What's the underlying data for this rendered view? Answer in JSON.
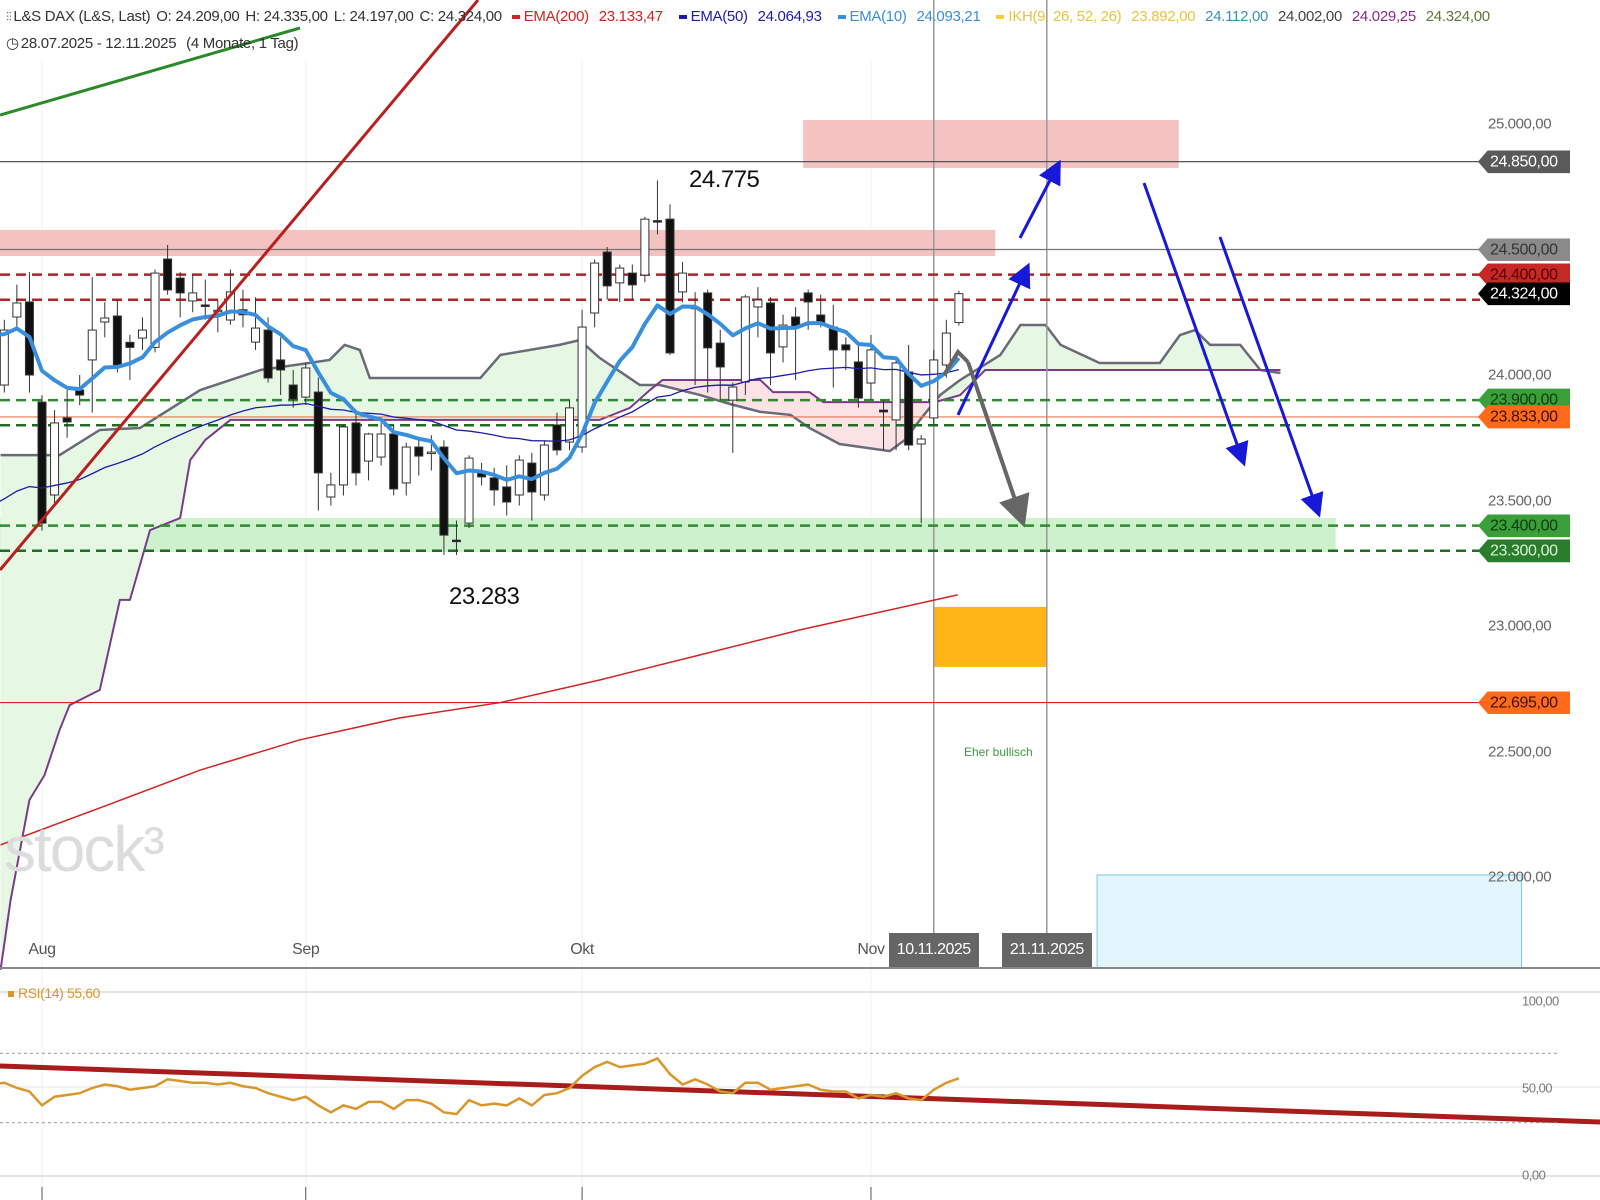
{
  "header": {
    "symbol": "L&S DAX (L&S, Last)",
    "open": "O: 24.209,00",
    "high": "H: 24.335,00",
    "low": "L: 24.197,00",
    "close": "C: 24.324,00",
    "ema200_label": "EMA(200)",
    "ema200_value": "23.133,47",
    "ema50_label": "EMA(50)",
    "ema50_value": "24.064,93",
    "ema10_label": "EMA(10)",
    "ema10_value": "24.093,21",
    "ikh_label": "IKH(9, 26, 52, 26)",
    "ikh_values": [
      "23.892,00",
      "24.112,00",
      "24.002,00",
      "24.029,25",
      "24.324,00"
    ],
    "date_range": "28.07.2025 - 12.11.2025",
    "span": "(4 Monate, 1 Tag)"
  },
  "colors": {
    "ema200": "#d22222",
    "ema50": "#1c1ca8",
    "ema10": "#3a8fdc",
    "ikh": "#f2cf3a",
    "rsi": "#d9962a",
    "up_zone": "#c6efc6",
    "down_zone": "#f5c2c2",
    "target_box": "#ffb515",
    "forecast_box": "#e2f4fc"
  },
  "annotations": {
    "high_label": "24.775",
    "low_label": "23.283",
    "bias_label": "Eher bullisch",
    "watermark": "stock³"
  },
  "x_axis": {
    "months": [
      {
        "label": "Aug",
        "index": 4
      },
      {
        "label": "Sep",
        "index": 25
      },
      {
        "label": "Okt",
        "index": 47
      },
      {
        "label": "Nov",
        "index": 70
      }
    ],
    "date_markers": [
      {
        "label": "10.11.2025",
        "index": 75
      },
      {
        "label": "21.11.2025",
        "index": 84
      }
    ]
  },
  "y_axis": {
    "ticks": [
      {
        "price": 25000,
        "label": "25.000,00"
      },
      {
        "price": 24000,
        "label": "24.000,00"
      },
      {
        "price": 23500,
        "label": "23.500,00"
      },
      {
        "price": 23000,
        "label": "23.000,00"
      },
      {
        "price": 22500,
        "label": "22.500,00"
      },
      {
        "price": 22000,
        "label": "22.000,00"
      }
    ]
  },
  "levels": [
    {
      "price": 24850,
      "label": "24.850,00",
      "line": "solid",
      "color": "#555555",
      "tag_bg": "#5a5a5a",
      "tag_fg": "#ffffff"
    },
    {
      "price": 24500,
      "label": "24.500,00",
      "line": "solid",
      "color": "#777777",
      "tag_bg": "#8a8a8a",
      "tag_fg": "#333333"
    },
    {
      "price": 24400,
      "label": "24.400,00",
      "line": "dashed",
      "color": "#b22222",
      "tag_bg": "#c62828",
      "tag_fg": "#5a0000"
    },
    {
      "price": 24300,
      "label": "24.324,00",
      "line": "dashed",
      "color": "#b22222",
      "tag_bg": "#000000",
      "tag_fg": "#ffffff"
    },
    {
      "price": 23900,
      "label": "23.900,00",
      "line": "dashed",
      "color": "#2e8b2e",
      "tag_bg": "#3a9e3a",
      "tag_fg": "#0c3d0c"
    },
    {
      "price": 23833,
      "label": "23.833,00",
      "line": "solid",
      "color": "#e07a50",
      "tag_bg": "#ff6a1a",
      "tag_fg": "#3a1000"
    },
    {
      "price": 23800,
      "label": "",
      "line": "dashed",
      "color": "#1f6e1f",
      "tag_bg": "",
      "tag_fg": ""
    },
    {
      "price": 23400,
      "label": "23.400,00",
      "line": "dashed",
      "color": "#2e8b2e",
      "tag_bg": "#3a9e3a",
      "tag_fg": "#0c3d0c"
    },
    {
      "price": 23300,
      "label": "23.300,00",
      "line": "dashed",
      "color": "#1f6e1f",
      "tag_bg": "#2a7d2a",
      "tag_fg": "#d8f5d8"
    },
    {
      "price": 22695,
      "label": "22.695,00",
      "line": "solid",
      "color": "#d22222",
      "tag_bg": "#ff6a1a",
      "tag_fg": "#3a1000"
    }
  ],
  "zones": [
    {
      "name": "resistance-zone-upper",
      "from_index": 64.6,
      "to_index": 94.5,
      "low": 24825,
      "high": 25016,
      "kind": "down"
    },
    {
      "name": "resistance-zone",
      "from_index": -2,
      "to_index": 79.9,
      "low": 24474,
      "high": 24578,
      "kind": "down"
    },
    {
      "name": "support-zone",
      "from_index": -2,
      "to_index": 107,
      "low": 23295,
      "high": 23430,
      "kind": "up"
    },
    {
      "name": "target-box",
      "from_index": 75,
      "to_index": 84,
      "low": 22837,
      "high": 23076,
      "kind": "target"
    },
    {
      "name": "forecast-box",
      "from_index": 88,
      "to_index": 121.8,
      "low": 21637,
      "high": 22008,
      "kind": "forecast"
    }
  ],
  "chart_data": {
    "type": "candlestick",
    "title": "L&S DAX (L&S, Last)",
    "period": "28.07.2025 - 12.11.2025",
    "ylim": [
      21637,
      25120
    ],
    "ohlc": [
      [
        24150,
        24260,
        24080,
        24200
      ],
      [
        23960,
        24220,
        23930,
        24179
      ],
      [
        24231,
        24360,
        24180,
        24287
      ],
      [
        24291,
        24410,
        23930,
        24000
      ],
      [
        23892,
        23920,
        23380,
        23410
      ],
      [
        23522,
        23860,
        23480,
        23809
      ],
      [
        23829,
        23940,
        23750,
        23813
      ],
      [
        23940,
        24000,
        23880,
        23920
      ],
      [
        24060,
        24390,
        23850,
        24179
      ],
      [
        24211,
        24290,
        24150,
        24227
      ],
      [
        24235,
        24300,
        24010,
        24040
      ],
      [
        24130,
        24160,
        23980,
        24110
      ],
      [
        24147,
        24230,
        24100,
        24179
      ],
      [
        24110,
        24420,
        24090,
        24406
      ],
      [
        24462,
        24518,
        24320,
        24339
      ],
      [
        24386,
        24410,
        24230,
        24327
      ],
      [
        24295,
        24400,
        24250,
        24327
      ],
      [
        24279,
        24380,
        24220,
        24275
      ],
      [
        24255,
        24300,
        24170,
        24258
      ],
      [
        24219,
        24420,
        24200,
        24331
      ],
      [
        24260,
        24340,
        24190,
        24240
      ],
      [
        24131,
        24310,
        24100,
        24187
      ],
      [
        24179,
        24230,
        23970,
        23988
      ],
      [
        24060,
        24150,
        23920,
        24020
      ],
      [
        23960,
        24020,
        23870,
        23904
      ],
      [
        23912,
        24050,
        23880,
        24028
      ],
      [
        23932,
        23990,
        23460,
        23610
      ],
      [
        23514,
        23610,
        23480,
        23562
      ],
      [
        23562,
        23800,
        23520,
        23793
      ],
      [
        23809,
        23860,
        23560,
        23610
      ],
      [
        23657,
        23770,
        23580,
        23765
      ],
      [
        23673,
        23810,
        23640,
        23765
      ],
      [
        23765,
        23800,
        23520,
        23546
      ],
      [
        23570,
        23730,
        23520,
        23713
      ],
      [
        23713,
        23750,
        23600,
        23677
      ],
      [
        23693,
        23760,
        23620,
        23693
      ],
      [
        23713,
        23740,
        23283,
        23362
      ],
      [
        23342,
        23420,
        23283,
        23340
      ],
      [
        23410,
        23680,
        23390,
        23669
      ],
      [
        23613,
        23650,
        23560,
        23594
      ],
      [
        23590,
        23630,
        23480,
        23542
      ],
      [
        23554,
        23640,
        23440,
        23494
      ],
      [
        23522,
        23680,
        23480,
        23661
      ],
      [
        23649,
        23690,
        23420,
        23534
      ],
      [
        23522,
        23740,
        23500,
        23721
      ],
      [
        23801,
        23850,
        23680,
        23701
      ],
      [
        23733,
        23900,
        23700,
        23869
      ],
      [
        23713,
        24260,
        23690,
        24191
      ],
      [
        24247,
        24460,
        24190,
        24446
      ],
      [
        24490,
        24510,
        24300,
        24355
      ],
      [
        24367,
        24440,
        24290,
        24426
      ],
      [
        24406,
        24440,
        24300,
        24359
      ],
      [
        24398,
        24630,
        24370,
        24621
      ],
      [
        24615,
        24775,
        24560,
        24610
      ],
      [
        24621,
        24680,
        24080,
        24088
      ],
      [
        24331,
        24450,
        24290,
        24406
      ],
      [
        24270,
        24330,
        23960,
        24268
      ],
      [
        24327,
        24340,
        23930,
        24108
      ],
      [
        24127,
        24180,
        23900,
        24032
      ],
      [
        23900,
        23970,
        23690,
        23952
      ],
      [
        23972,
        24320,
        23920,
        24311
      ],
      [
        24271,
        24350,
        24150,
        24299
      ],
      [
        24287,
        24310,
        23960,
        24088
      ],
      [
        24112,
        24240,
        24050,
        24199
      ],
      [
        24231,
        24270,
        23980,
        24191
      ],
      [
        24327,
        24340,
        24180,
        24291
      ],
      [
        24239,
        24320,
        24190,
        24207
      ],
      [
        24191,
        24280,
        23950,
        24100
      ],
      [
        24120,
        24150,
        24020,
        24100
      ],
      [
        24052,
        24130,
        23870,
        23908
      ],
      [
        23968,
        24160,
        23900,
        24100
      ],
      [
        23860,
        23900,
        23700,
        23853
      ],
      [
        23821,
        24060,
        23700,
        24048
      ],
      [
        24012,
        24120,
        23700,
        23721
      ],
      [
        23725,
        23760,
        23410,
        23745
      ],
      [
        23829,
        24100,
        23800,
        24060
      ],
      [
        24040,
        24220,
        23990,
        24167
      ],
      [
        24209,
        24335,
        24197,
        24324
      ]
    ],
    "ema10_seed": 24150,
    "ema50_seed": 23450,
    "ema200": [
      [
        0.7,
        22128
      ],
      [
        8.6,
        22275
      ],
      [
        16.6,
        22426
      ],
      [
        24.5,
        22546
      ],
      [
        32.5,
        22634
      ],
      [
        40.5,
        22695
      ],
      [
        48.4,
        22785
      ],
      [
        56.4,
        22885
      ],
      [
        64.4,
        22985
      ],
      [
        76.9,
        23124
      ]
    ],
    "ikh_span_a": [
      [
        0.7,
        23681
      ],
      [
        5.4,
        23681
      ],
      [
        8.6,
        23781
      ],
      [
        11.8,
        23789
      ],
      [
        16.6,
        23940
      ],
      [
        21.4,
        24020
      ],
      [
        26.9,
        24060
      ],
      [
        28.1,
        24120
      ],
      [
        29.3,
        24100
      ],
      [
        30.1,
        23988
      ],
      [
        38.9,
        23988
      ],
      [
        40.5,
        24080
      ],
      [
        45.2,
        24120
      ],
      [
        46.8,
        24139
      ],
      [
        48.4,
        24068
      ],
      [
        51.6,
        23960
      ],
      [
        53.2,
        23960
      ],
      [
        56.4,
        23920
      ],
      [
        58.8,
        23884
      ],
      [
        61.2,
        23853
      ],
      [
        63.6,
        23841
      ],
      [
        65.1,
        23789
      ],
      [
        67.5,
        23725
      ],
      [
        71.5,
        23697
      ],
      [
        72.7,
        23741
      ],
      [
        73.9,
        23821
      ],
      [
        75.5,
        23920
      ],
      [
        77.1,
        23980
      ],
      [
        80.3,
        24080
      ],
      [
        81.9,
        24199
      ],
      [
        83.9,
        24199
      ],
      [
        85.1,
        24120
      ],
      [
        88.2,
        24048
      ],
      [
        93,
        24048
      ],
      [
        94.6,
        24159
      ],
      [
        95.8,
        24179
      ],
      [
        97,
        24120
      ],
      [
        99.4,
        24120
      ],
      [
        101,
        24020
      ],
      [
        102.6,
        24008
      ]
    ],
    "ikh_span_b": [
      [
        0.7,
        21630
      ],
      [
        1.5,
        21908
      ],
      [
        3,
        22307
      ],
      [
        4.2,
        22406
      ],
      [
        5.4,
        22586
      ],
      [
        6.2,
        22685
      ],
      [
        8.6,
        22745
      ],
      [
        10.2,
        23104
      ],
      [
        11,
        23104
      ],
      [
        12.6,
        23382
      ],
      [
        15,
        23430
      ],
      [
        15.8,
        23661
      ],
      [
        17,
        23741
      ],
      [
        19,
        23821
      ],
      [
        48.4,
        23821
      ],
      [
        50.8,
        23869
      ],
      [
        52.4,
        23940
      ],
      [
        53.4,
        23980
      ],
      [
        61.2,
        23980
      ],
      [
        62.2,
        23932
      ],
      [
        65.1,
        23932
      ],
      [
        66.2,
        23892
      ],
      [
        75.1,
        23892
      ],
      [
        77.1,
        23920
      ],
      [
        79.1,
        24020
      ],
      [
        102.6,
        24020
      ]
    ],
    "bearish_cloud_range": [
      52.8,
      75.6
    ],
    "rsi": {
      "label": "RSI(14)",
      "value_label": "55,60",
      "ticks": [
        {
          "value": 100,
          "label": "100,00"
        },
        {
          "value": 50,
          "label": "50,00"
        },
        {
          "value": 0,
          "label": "0,00"
        }
      ],
      "bands": [
        70,
        30
      ],
      "values": [
        52,
        53,
        50,
        48,
        40,
        45,
        46,
        47,
        50,
        52,
        51,
        49,
        50,
        51,
        55,
        54,
        53,
        53,
        52,
        53,
        51,
        50,
        47,
        45,
        43,
        45,
        40,
        36,
        40,
        38,
        42,
        42,
        38,
        43,
        43,
        41,
        36,
        35,
        43,
        40,
        41,
        40,
        44,
        40,
        46,
        47,
        50,
        57,
        62,
        65,
        62,
        63,
        64,
        67,
        58,
        52,
        55,
        52,
        48,
        47,
        53,
        53,
        49,
        50,
        51,
        52,
        49,
        48,
        48,
        44,
        46,
        45,
        47,
        44,
        43,
        49,
        53,
        55.6
      ]
    }
  }
}
